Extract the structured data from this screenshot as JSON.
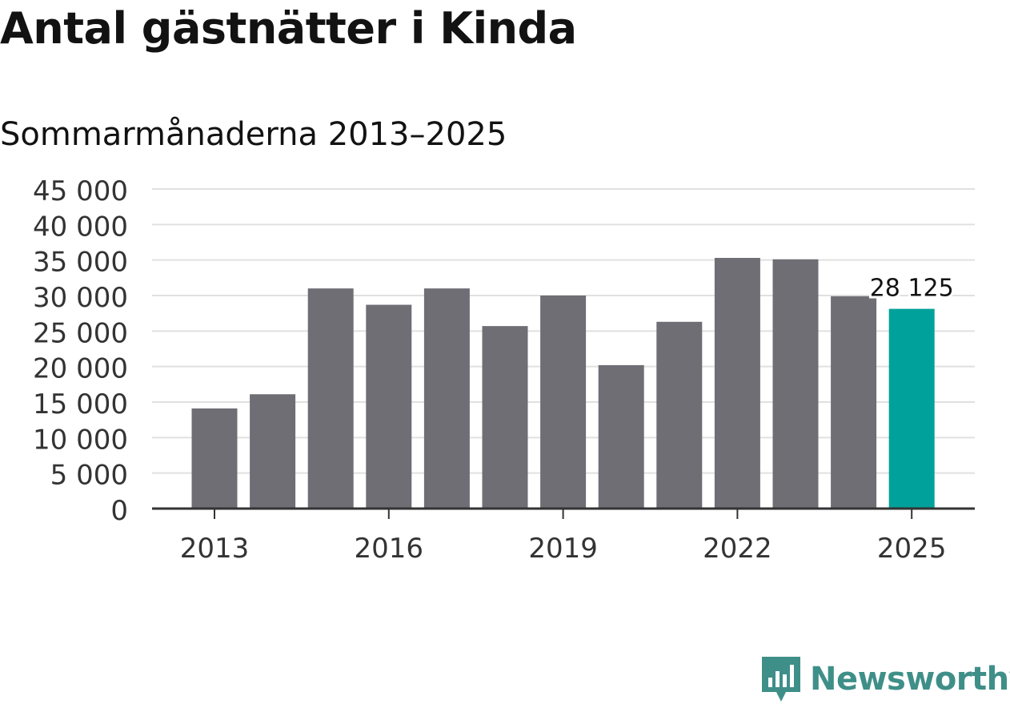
{
  "title": "Antal gästnätter i Kinda",
  "subtitle": "Sommarmånaderna 2013–2025",
  "brand": {
    "name": "Newsworthy",
    "color": "#3f8f89",
    "icon": "newsworthy-logo-icon"
  },
  "colors": {
    "bar": "#6f6e75",
    "highlight": "#00a19a",
    "grid": "#e0e0e0",
    "axis": "#333333"
  },
  "chart_data": {
    "type": "bar",
    "categories": [
      "2013",
      "2014",
      "2015",
      "2016",
      "2017",
      "2018",
      "2019",
      "2020",
      "2021",
      "2022",
      "2023",
      "2024",
      "2025"
    ],
    "values": [
      14100,
      16100,
      31000,
      28700,
      31000,
      25700,
      30000,
      20200,
      26300,
      35300,
      35100,
      29900,
      28125
    ],
    "x_tick_labels": [
      "2013",
      "2016",
      "2019",
      "2022",
      "2025"
    ],
    "y_ticks": [
      0,
      5000,
      10000,
      15000,
      20000,
      25000,
      30000,
      35000,
      40000,
      45000
    ],
    "y_tick_labels": [
      "0",
      "5 000",
      "10 000",
      "15 000",
      "20 000",
      "25 000",
      "30 000",
      "35 000",
      "40 000",
      "45 000"
    ],
    "ylim": [
      0,
      45000
    ],
    "highlight_index": 12,
    "data_label": "28 125",
    "xlabel": "",
    "ylabel": "",
    "grid": true
  }
}
